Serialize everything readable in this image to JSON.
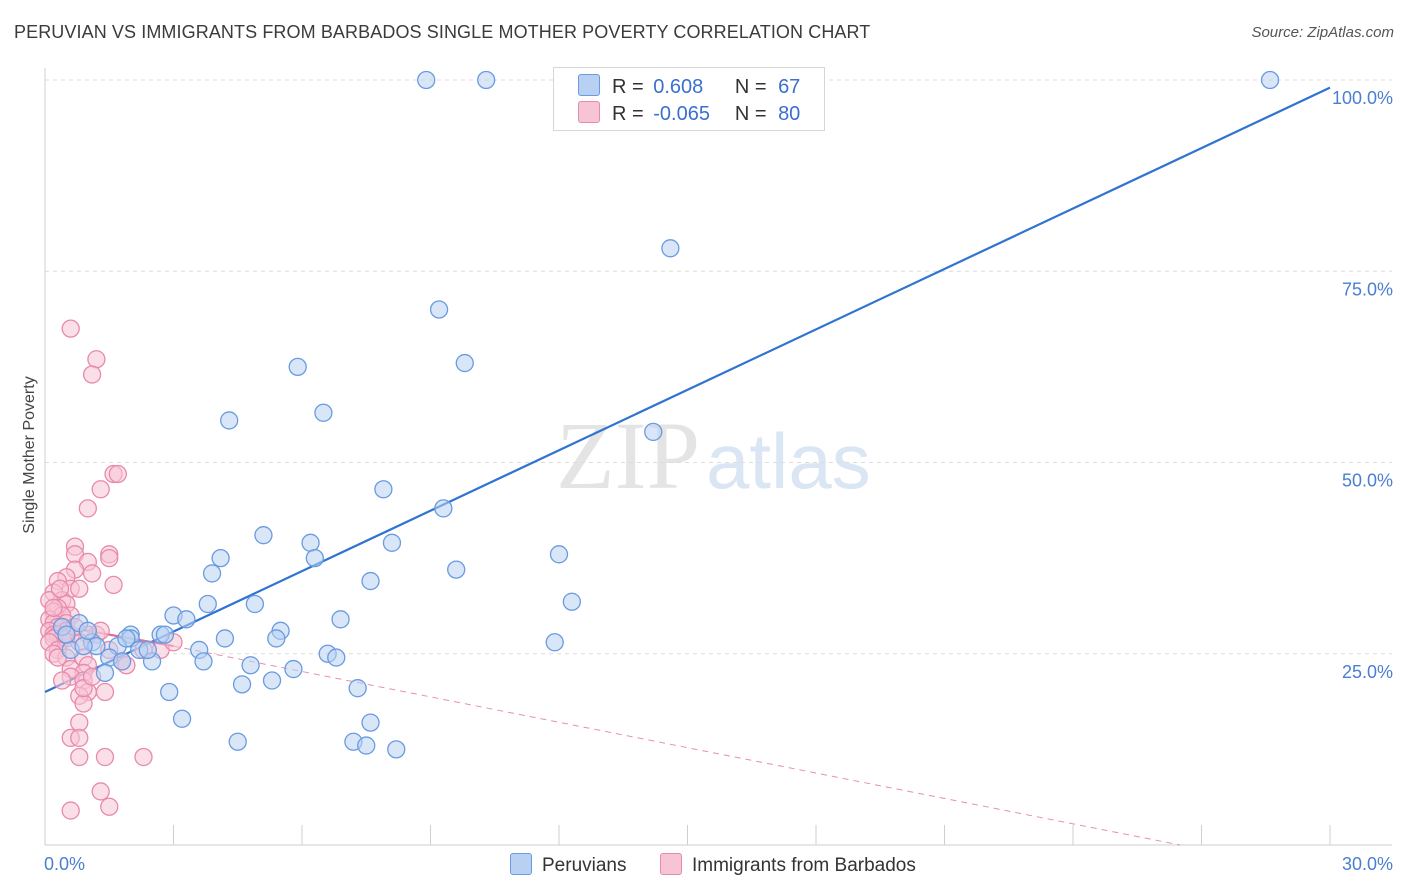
{
  "header": {
    "title": "PERUVIAN VS IMMIGRANTS FROM BARBADOS SINGLE MOTHER POVERTY CORRELATION CHART",
    "source": "Source: ZipAtlas.com"
  },
  "watermark": {
    "zip": "ZIP",
    "atlas": "atlas"
  },
  "legend": {
    "rows": [
      {
        "r_label": "R =",
        "r_value": "0.608",
        "n_label": "N =",
        "n_value": "67"
      },
      {
        "r_label": "R =",
        "r_value": "-0.065",
        "n_label": "N =",
        "n_value": "80"
      }
    ]
  },
  "bottom_legend": {
    "series1": "Peruvians",
    "series2": "Immigrants from Barbados"
  },
  "colors": {
    "blue_fill": "#b8d1f3",
    "blue_stroke": "#6a9be0",
    "blue_line": "#2f74d0",
    "pink_fill": "#f7c4d5",
    "pink_stroke": "#e88aab",
    "pink_line": "#e06a93",
    "grid": "#dcdcdc",
    "tick_text": "#4a7fd0"
  },
  "chart_data": {
    "type": "scatter",
    "title": "PERUVIAN VS IMMIGRANTS FROM BARBADOS SINGLE MOTHER POVERTY CORRELATION CHART",
    "xlabel": "",
    "ylabel": "Single Mother Poverty",
    "xlim": [
      0,
      30
    ],
    "ylim": [
      0,
      100
    ],
    "x_ticks": [
      "0.0%",
      "30.0%"
    ],
    "y_ticks": [
      "25.0%",
      "50.0%",
      "75.0%",
      "100.0%"
    ],
    "grid": true,
    "series": [
      {
        "name": "Peruvians",
        "R": 0.608,
        "N": 67,
        "trend": {
          "x": [
            0,
            30
          ],
          "y": [
            20,
            99
          ]
        },
        "points": [
          [
            8.9,
            100
          ],
          [
            10.3,
            100
          ],
          [
            28.6,
            100
          ],
          [
            14.6,
            78
          ],
          [
            9.2,
            70
          ],
          [
            9.8,
            63
          ],
          [
            5.9,
            62.5
          ],
          [
            6.5,
            56.5
          ],
          [
            4.3,
            55.5
          ],
          [
            14.2,
            54
          ],
          [
            7.9,
            46.5
          ],
          [
            9.3,
            44
          ],
          [
            5.1,
            40.5
          ],
          [
            6.2,
            39.5
          ],
          [
            8.1,
            39.5
          ],
          [
            4.1,
            37.5
          ],
          [
            6.3,
            37.5
          ],
          [
            12.0,
            38
          ],
          [
            9.6,
            36
          ],
          [
            3.9,
            35.5
          ],
          [
            7.6,
            34.5
          ],
          [
            3.8,
            31.5
          ],
          [
            4.9,
            31.5
          ],
          [
            12.3,
            31.8
          ],
          [
            3.0,
            30
          ],
          [
            3.3,
            29.5
          ],
          [
            6.9,
            29.5
          ],
          [
            5.5,
            28
          ],
          [
            2.7,
            27.5
          ],
          [
            2.0,
            27.5
          ],
          [
            2.8,
            27.5
          ],
          [
            4.2,
            27
          ],
          [
            5.4,
            27
          ],
          [
            1.1,
            26.5
          ],
          [
            2.0,
            27
          ],
          [
            1.2,
            26
          ],
          [
            1.7,
            26
          ],
          [
            0.6,
            25.5
          ],
          [
            2.2,
            25.5
          ],
          [
            3.6,
            25.5
          ],
          [
            6.6,
            25
          ],
          [
            1.5,
            24.5
          ],
          [
            2.5,
            24
          ],
          [
            1.8,
            24
          ],
          [
            3.7,
            24
          ],
          [
            6.8,
            24.5
          ],
          [
            4.8,
            23.5
          ],
          [
            5.8,
            23
          ],
          [
            11.9,
            26.5
          ],
          [
            0.8,
            29
          ],
          [
            0.4,
            28.5
          ],
          [
            1.4,
            22.5
          ],
          [
            2.9,
            20
          ],
          [
            5.3,
            21.5
          ],
          [
            4.6,
            21
          ],
          [
            7.3,
            20.5
          ],
          [
            3.2,
            16.5
          ],
          [
            4.5,
            13.5
          ],
          [
            7.2,
            13.5
          ],
          [
            7.5,
            13
          ],
          [
            7.6,
            16
          ],
          [
            8.2,
            12.5
          ],
          [
            0.9,
            26
          ],
          [
            1.9,
            27
          ],
          [
            0.5,
            27.5
          ],
          [
            2.4,
            25.5
          ],
          [
            1.0,
            28
          ]
        ]
      },
      {
        "name": "Immigrants from Barbados",
        "R": -0.065,
        "N": 80,
        "trend": {
          "x": [
            0,
            3.0
          ],
          "y": [
            29,
            26
          ]
        },
        "trend_ext": {
          "x": [
            3.0,
            26.5
          ],
          "y": [
            26,
            0
          ]
        },
        "points": [
          [
            0.6,
            67.5
          ],
          [
            1.2,
            63.5
          ],
          [
            1.1,
            61.5
          ],
          [
            1.6,
            48.5
          ],
          [
            1.7,
            48.5
          ],
          [
            1.3,
            46.5
          ],
          [
            1.0,
            44
          ],
          [
            0.7,
            39
          ],
          [
            1.5,
            38
          ],
          [
            1.5,
            37.5
          ],
          [
            0.7,
            38
          ],
          [
            1.0,
            37
          ],
          [
            1.1,
            35.5
          ],
          [
            0.7,
            36
          ],
          [
            1.6,
            34
          ],
          [
            0.5,
            35
          ],
          [
            0.3,
            34.5
          ],
          [
            0.6,
            33.5
          ],
          [
            0.8,
            33.5
          ],
          [
            0.2,
            33
          ],
          [
            0.4,
            32
          ],
          [
            0.1,
            32
          ],
          [
            0.5,
            31.5
          ],
          [
            0.3,
            31
          ],
          [
            0.2,
            30.5
          ],
          [
            0.6,
            30
          ],
          [
            0.4,
            30
          ],
          [
            0.1,
            29.5
          ],
          [
            0.5,
            29
          ],
          [
            0.2,
            29
          ],
          [
            0.3,
            28.5
          ],
          [
            0.4,
            28.5
          ],
          [
            0.5,
            28
          ],
          [
            0.1,
            28
          ],
          [
            0.2,
            27.5
          ],
          [
            0.3,
            27.5
          ],
          [
            0.6,
            27.5
          ],
          [
            0.4,
            27
          ],
          [
            0.2,
            27
          ],
          [
            0.5,
            27
          ],
          [
            1.2,
            27.5
          ],
          [
            1.0,
            27.5
          ],
          [
            1.3,
            28
          ],
          [
            0.8,
            26.5
          ],
          [
            0.1,
            26.5
          ],
          [
            0.3,
            25.5
          ],
          [
            0.2,
            25
          ],
          [
            0.5,
            24.5
          ],
          [
            0.3,
            24.5
          ],
          [
            0.9,
            24.5
          ],
          [
            1.5,
            25.5
          ],
          [
            2.3,
            25.5
          ],
          [
            2.7,
            25.5
          ],
          [
            3.0,
            26.5
          ],
          [
            1.8,
            24
          ],
          [
            1.9,
            23.5
          ],
          [
            1.0,
            23.5
          ],
          [
            0.6,
            23
          ],
          [
            0.9,
            22.5
          ],
          [
            0.6,
            22
          ],
          [
            0.9,
            21.5
          ],
          [
            0.4,
            21.5
          ],
          [
            1.0,
            20
          ],
          [
            1.4,
            20
          ],
          [
            0.8,
            19.5
          ],
          [
            0.9,
            18.5
          ],
          [
            0.8,
            16
          ],
          [
            0.6,
            14
          ],
          [
            0.8,
            14
          ],
          [
            0.8,
            11.5
          ],
          [
            1.4,
            11.5
          ],
          [
            2.3,
            11.5
          ],
          [
            1.3,
            7
          ],
          [
            0.6,
            4.5
          ],
          [
            1.5,
            5
          ],
          [
            0.9,
            20.5
          ],
          [
            1.1,
            22
          ],
          [
            0.2,
            31
          ],
          [
            0.7,
            28.5
          ],
          [
            0.35,
            33.5
          ]
        ]
      }
    ]
  }
}
